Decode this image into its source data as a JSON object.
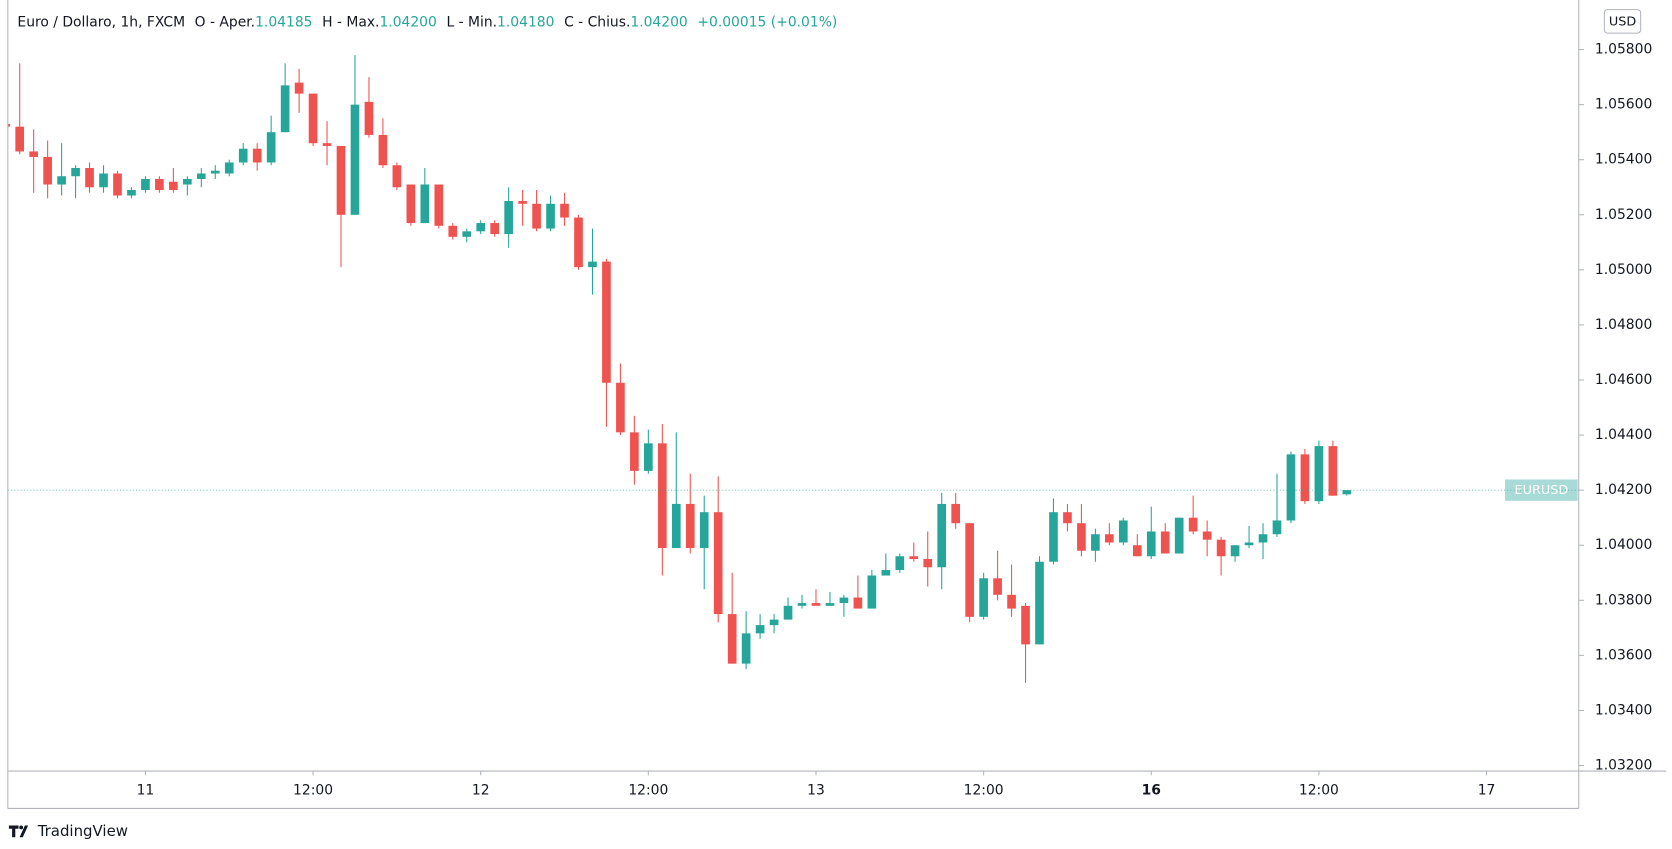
{
  "chart_data": {
    "type": "candlestick",
    "title": "Euro / Dollaro, 1h, FXCM",
    "legend": [
      {
        "label": "O - Aper.",
        "value": "1.04185"
      },
      {
        "label": "H - Max.",
        "value": "1.04200"
      },
      {
        "label": "L - Min.",
        "value": "1.04180"
      },
      {
        "label": "C - Chius.",
        "value": "1.04200"
      }
    ],
    "change": "+0.00015 (+0.01%)",
    "currency": "USD",
    "symbol": "EURUSD",
    "brand": "TradingView",
    "up_color": "#26a69a",
    "down_color": "#ef5350",
    "open": [
      1.0553,
      1.0552,
      1.0543,
      1.0541,
      1.0531,
      1.0534,
      1.0537,
      1.053,
      1.0535,
      1.0527,
      1.0529,
      1.0533,
      1.0532,
      1.0531,
      1.0533,
      1.0535,
      1.0535,
      1.0539,
      1.0544,
      1.0539,
      1.055,
      1.0568,
      1.0564,
      1.0546,
      1.0545,
      1.052,
      1.0561,
      1.0549,
      1.0538,
      1.0531,
      1.0517,
      1.0531,
      1.0516,
      1.0512,
      1.0514,
      1.0517,
      1.0513,
      1.0525,
      1.0524,
      1.0515,
      1.0524,
      1.0519,
      1.0501,
      1.0503,
      1.0459,
      1.0441,
      1.0427,
      1.0437,
      1.0399,
      1.0415,
      1.0399,
      1.0412,
      1.0375,
      1.0357,
      1.0368,
      1.0371,
      1.0373,
      1.0378,
      1.0379,
      1.0378,
      1.0379,
      1.0381,
      1.0377,
      1.0389,
      1.0391,
      1.0396,
      1.0395,
      1.0392,
      1.0415,
      1.0408,
      1.0374,
      1.0388,
      1.0382,
      1.0378,
      1.0364,
      1.0394,
      1.0412,
      1.0408,
      1.0398,
      1.0404,
      1.0401,
      1.04,
      1.0396,
      1.0405,
      1.0397,
      1.041,
      1.0405,
      1.0402,
      1.0396,
      1.04,
      1.0401,
      1.0404,
      1.0409,
      1.0433,
      1.0416,
      1.0436,
      1.04185
    ],
    "high": [
      1.0554,
      1.0575,
      1.0551,
      1.0547,
      1.0546,
      1.0538,
      1.0539,
      1.0538,
      1.0536,
      1.053,
      1.0534,
      1.0534,
      1.0537,
      1.0534,
      1.0537,
      1.0538,
      1.054,
      1.0546,
      1.0546,
      1.0556,
      1.0575,
      1.0573,
      1.0564,
      1.0554,
      1.0545,
      1.0578,
      1.057,
      1.0555,
      1.0539,
      1.0531,
      1.0537,
      1.0531,
      1.0517,
      1.0515,
      1.0518,
      1.0518,
      1.053,
      1.0529,
      1.0529,
      1.0527,
      1.0528,
      1.052,
      1.0515,
      1.0504,
      1.0466,
      1.0447,
      1.0442,
      1.0444,
      1.0441,
      1.0426,
      1.0418,
      1.0425,
      1.039,
      1.0376,
      1.0375,
      1.0375,
      1.0381,
      1.0382,
      1.0384,
      1.0383,
      1.0382,
      1.0389,
      1.0391,
      1.0397,
      1.0397,
      1.0401,
      1.0405,
      1.0419,
      1.0419,
      1.0408,
      1.039,
      1.0398,
      1.0393,
      1.0379,
      1.0396,
      1.0417,
      1.0415,
      1.0415,
      1.0406,
      1.0408,
      1.041,
      1.0404,
      1.0414,
      1.0408,
      1.041,
      1.0418,
      1.0409,
      1.0403,
      1.04,
      1.0407,
      1.0408,
      1.0426,
      1.0434,
      1.0435,
      1.0438,
      1.0438,
      1.042
    ],
    "low": [
      1.0551,
      1.0542,
      1.0528,
      1.0526,
      1.0527,
      1.0526,
      1.0528,
      1.0528,
      1.0526,
      1.0526,
      1.0528,
      1.0528,
      1.0528,
      1.0527,
      1.053,
      1.0533,
      1.0534,
      1.0538,
      1.0536,
      1.0538,
      1.055,
      1.0557,
      1.0545,
      1.0538,
      1.0501,
      1.052,
      1.0548,
      1.0537,
      1.0529,
      1.0516,
      1.0517,
      1.0515,
      1.0511,
      1.051,
      1.0513,
      1.0512,
      1.0508,
      1.0516,
      1.0514,
      1.0514,
      1.0516,
      1.05,
      1.0491,
      1.0443,
      1.044,
      1.0422,
      1.0426,
      1.0389,
      1.0399,
      1.0397,
      1.0384,
      1.0372,
      1.0357,
      1.0355,
      1.0366,
      1.0368,
      1.0373,
      1.0377,
      1.0378,
      1.0378,
      1.0374,
      1.0377,
      1.0377,
      1.0389,
      1.039,
      1.0394,
      1.0385,
      1.0384,
      1.0406,
      1.0372,
      1.0373,
      1.038,
      1.0374,
      1.035,
      1.0364,
      1.0393,
      1.0405,
      1.0396,
      1.0394,
      1.04,
      1.04,
      1.0396,
      1.0395,
      1.0397,
      1.0397,
      1.0404,
      1.0396,
      1.0389,
      1.0394,
      1.0399,
      1.0395,
      1.0403,
      1.0408,
      1.0415,
      1.0415,
      1.0418,
      1.0418
    ],
    "close": [
      1.0552,
      1.0543,
      1.0541,
      1.0531,
      1.0534,
      1.0537,
      1.053,
      1.0535,
      1.0527,
      1.0529,
      1.0533,
      1.0529,
      1.0529,
      1.0533,
      1.0535,
      1.0536,
      1.0539,
      1.0544,
      1.0539,
      1.055,
      1.0567,
      1.0564,
      1.0546,
      1.0545,
      1.052,
      1.056,
      1.0549,
      1.0538,
      1.053,
      1.0517,
      1.0531,
      1.0516,
      1.0512,
      1.0514,
      1.0517,
      1.0513,
      1.0525,
      1.0524,
      1.0515,
      1.0524,
      1.0519,
      1.0501,
      1.0503,
      1.0459,
      1.0441,
      1.0427,
      1.0437,
      1.0399,
      1.0415,
      1.0399,
      1.0412,
      1.0375,
      1.0357,
      1.0368,
      1.0371,
      1.0373,
      1.0378,
      1.0379,
      1.0378,
      1.0379,
      1.0381,
      1.0377,
      1.0389,
      1.0391,
      1.0396,
      1.0395,
      1.0392,
      1.0415,
      1.0408,
      1.0374,
      1.0388,
      1.0382,
      1.0377,
      1.0364,
      1.0394,
      1.0412,
      1.0408,
      1.0398,
      1.0404,
      1.0401,
      1.0409,
      1.0396,
      1.0405,
      1.0397,
      1.041,
      1.0405,
      1.0402,
      1.0396,
      1.04,
      1.0401,
      1.0404,
      1.0409,
      1.0433,
      1.0416,
      1.0436,
      1.0418,
      1.042
    ],
    "ylim": [
      1.0318,
      1.0598
    ],
    "yticks": [
      {
        "value": 1.032,
        "label": "1.03200"
      },
      {
        "value": 1.034,
        "label": "1.03400"
      },
      {
        "value": 1.036,
        "label": "1.03600"
      },
      {
        "value": 1.038,
        "label": "1.03800"
      },
      {
        "value": 1.04,
        "label": "1.04000"
      },
      {
        "value": 1.042,
        "label": "1.04200"
      },
      {
        "value": 1.044,
        "label": "1.04400"
      },
      {
        "value": 1.046,
        "label": "1.04600"
      },
      {
        "value": 1.048,
        "label": "1.04800"
      },
      {
        "value": 1.05,
        "label": "1.05000"
      },
      {
        "value": 1.052,
        "label": "1.05200"
      },
      {
        "value": 1.054,
        "label": "1.05400"
      },
      {
        "value": 1.056,
        "label": "1.05600"
      },
      {
        "value": 1.058,
        "label": "1.05800"
      }
    ],
    "xlim": [
      0.15,
      112.6
    ],
    "xticks": [
      {
        "value": 10,
        "label": "11"
      },
      {
        "value": 22,
        "label": "12:00"
      },
      {
        "value": 34,
        "label": "12"
      },
      {
        "value": 46,
        "label": "12:00"
      },
      {
        "value": 58,
        "label": "13"
      },
      {
        "value": 70,
        "label": "12:00"
      },
      {
        "value": 82,
        "label": "16"
      },
      {
        "value": 94,
        "label": "12:00"
      },
      {
        "value": 106,
        "label": "17"
      }
    ]
  }
}
